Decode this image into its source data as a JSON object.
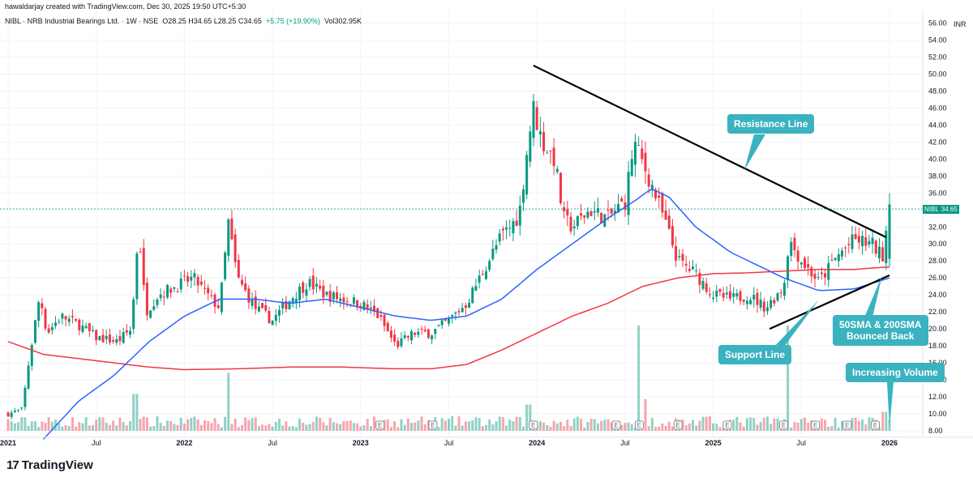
{
  "header": {
    "credit": "hawaldarjay created with TradingView.com, Dec 30, 2025 19:50 UTC+5:30",
    "symbol_line": "NIBL · NRB Industrial Bearings Ltd. · 1W · NSE",
    "ohlc": "O28.25 H34.65 L28.25 C34.65",
    "change": "+5.75 (+19.90%)",
    "volume": "Vol302.95K"
  },
  "price_badge": {
    "symbol": "NIBL",
    "value": "34.65"
  },
  "logo": {
    "mark": "17",
    "name": "TradingView"
  },
  "annotations": {
    "resistance": "Resistance Line",
    "support": "Support Line",
    "sma": "50SMA & 200SMA\nBounced Back",
    "volume": "Increasing Volume"
  },
  "colors": {
    "up": "#089981",
    "down": "#f23645",
    "sma50": "#2962ff",
    "sma200": "#f23645",
    "annotation": "#3bb2c0"
  },
  "chart_data": {
    "type": "candlestick",
    "currency": "INR",
    "y_ticks": [
      "8.00",
      "10.00",
      "12.00",
      "14.00",
      "16.00",
      "18.00",
      "20.00",
      "22.00",
      "24.00",
      "26.00",
      "28.00",
      "30.00",
      "32.00",
      "34.00",
      "36.00",
      "38.00",
      "40.00",
      "42.00",
      "44.00",
      "46.00",
      "48.00",
      "50.00",
      "52.00",
      "54.00",
      "56.00"
    ],
    "x_ticks": [
      {
        "label": "2021",
        "t": 0,
        "bold": true
      },
      {
        "label": "Jul",
        "t": 0.5
      },
      {
        "label": "2022",
        "t": 1,
        "bold": true
      },
      {
        "label": "Jul",
        "t": 1.5
      },
      {
        "label": "2023",
        "t": 2,
        "bold": true
      },
      {
        "label": "Jul",
        "t": 2.5
      },
      {
        "label": "2024",
        "t": 3,
        "bold": true
      },
      {
        "label": "Jul",
        "t": 3.5
      },
      {
        "label": "2025",
        "t": 4,
        "bold": true
      },
      {
        "label": "Jul",
        "t": 4.5
      },
      {
        "label": "2026",
        "t": 5,
        "bold": true
      }
    ],
    "ylim": [
      7,
      57
    ],
    "close_keypoints": [
      [
        0.0,
        10.0
      ],
      [
        0.08,
        10.5
      ],
      [
        0.12,
        16.5
      ],
      [
        0.18,
        24.0
      ],
      [
        0.22,
        19.5
      ],
      [
        0.3,
        21.5
      ],
      [
        0.4,
        20.5
      ],
      [
        0.5,
        19.0
      ],
      [
        0.62,
        18.5
      ],
      [
        0.7,
        20.0
      ],
      [
        0.74,
        32.0
      ],
      [
        0.78,
        22.0
      ],
      [
        0.85,
        24.0
      ],
      [
        0.95,
        25.0
      ],
      [
        1.05,
        26.0
      ],
      [
        1.15,
        23.5
      ],
      [
        1.2,
        22.5
      ],
      [
        1.25,
        32.5
      ],
      [
        1.3,
        26.0
      ],
      [
        1.4,
        22.5
      ],
      [
        1.5,
        21.0
      ],
      [
        1.6,
        23.5
      ],
      [
        1.7,
        25.5
      ],
      [
        1.8,
        24.0
      ],
      [
        1.9,
        23.5
      ],
      [
        2.0,
        23.0
      ],
      [
        2.1,
        21.5
      ],
      [
        2.2,
        18.0
      ],
      [
        2.3,
        19.5
      ],
      [
        2.4,
        19.5
      ],
      [
        2.5,
        21.0
      ],
      [
        2.6,
        23.0
      ],
      [
        2.7,
        27.0
      ],
      [
        2.8,
        31.0
      ],
      [
        2.85,
        32.0
      ],
      [
        2.9,
        33.5
      ],
      [
        2.95,
        42.0
      ],
      [
        2.98,
        46.0
      ],
      [
        3.03,
        42.0
      ],
      [
        3.1,
        40.0
      ],
      [
        3.15,
        33.0
      ],
      [
        3.2,
        32.0
      ],
      [
        3.3,
        34.0
      ],
      [
        3.4,
        33.0
      ],
      [
        3.5,
        35.0
      ],
      [
        3.55,
        42.0
      ],
      [
        3.6,
        39.5
      ],
      [
        3.65,
        37.0
      ],
      [
        3.72,
        33.0
      ],
      [
        3.8,
        28.0
      ],
      [
        3.9,
        26.5
      ],
      [
        4.0,
        24.0
      ],
      [
        4.1,
        23.5
      ],
      [
        4.2,
        24.0
      ],
      [
        4.3,
        22.5
      ],
      [
        4.4,
        25.0
      ],
      [
        4.43,
        30.5
      ],
      [
        4.5,
        28.0
      ],
      [
        4.6,
        25.5
      ],
      [
        4.7,
        28.5
      ],
      [
        4.8,
        30.5
      ],
      [
        4.9,
        30.0
      ],
      [
        4.96,
        28.5
      ],
      [
        5.0,
        34.65
      ]
    ],
    "sma50_keypoints": [
      [
        0.2,
        7.0
      ],
      [
        0.4,
        11.5
      ],
      [
        0.6,
        14.5
      ],
      [
        0.8,
        18.5
      ],
      [
        1.0,
        21.5
      ],
      [
        1.2,
        23.5
      ],
      [
        1.4,
        23.5
      ],
      [
        1.6,
        23.0
      ],
      [
        1.8,
        23.5
      ],
      [
        2.0,
        22.5
      ],
      [
        2.2,
        21.5
      ],
      [
        2.4,
        21.0
      ],
      [
        2.6,
        21.5
      ],
      [
        2.8,
        23.5
      ],
      [
        3.0,
        27.0
      ],
      [
        3.2,
        30.0
      ],
      [
        3.4,
        33.0
      ],
      [
        3.55,
        35.0
      ],
      [
        3.65,
        36.5
      ],
      [
        3.75,
        35.5
      ],
      [
        3.9,
        32.0
      ],
      [
        4.1,
        29.0
      ],
      [
        4.25,
        27.5
      ],
      [
        4.4,
        26.0
      ],
      [
        4.6,
        24.5
      ],
      [
        4.8,
        24.7
      ],
      [
        5.0,
        26.0
      ]
    ],
    "sma200_keypoints": [
      [
        0.0,
        18.5
      ],
      [
        0.2,
        17.0
      ],
      [
        0.4,
        16.5
      ],
      [
        0.6,
        16.0
      ],
      [
        0.8,
        15.5
      ],
      [
        1.0,
        15.2
      ],
      [
        1.3,
        15.3
      ],
      [
        1.6,
        15.5
      ],
      [
        1.9,
        15.5
      ],
      [
        2.2,
        15.3
      ],
      [
        2.4,
        15.3
      ],
      [
        2.6,
        15.8
      ],
      [
        2.8,
        17.5
      ],
      [
        3.0,
        19.5
      ],
      [
        3.2,
        21.5
      ],
      [
        3.4,
        23.0
      ],
      [
        3.6,
        25.0
      ],
      [
        3.8,
        26.0
      ],
      [
        4.0,
        26.5
      ],
      [
        4.2,
        26.6
      ],
      [
        4.4,
        26.8
      ],
      [
        4.6,
        27.0
      ],
      [
        4.8,
        27.0
      ],
      [
        5.0,
        27.3
      ]
    ],
    "resistance_line": [
      [
        2.98,
        51.0
      ],
      [
        4.98,
        30.8
      ]
    ],
    "support_line": [
      [
        4.32,
        20.0
      ],
      [
        5.0,
        26.3
      ]
    ],
    "volume_spikes": [
      [
        0.72,
        0.35
      ],
      [
        1.25,
        0.55
      ],
      [
        2.95,
        0.25
      ],
      [
        3.58,
        1.0
      ],
      [
        3.62,
        0.3
      ],
      [
        4.42,
        1.0
      ],
      [
        4.8,
        0.12
      ],
      [
        4.97,
        0.18
      ]
    ],
    "earnings_markers": [
      2.11,
      2.41,
      2.98,
      3.45,
      3.58,
      3.8,
      4.08,
      4.4,
      4.58,
      4.76,
      4.92
    ]
  }
}
